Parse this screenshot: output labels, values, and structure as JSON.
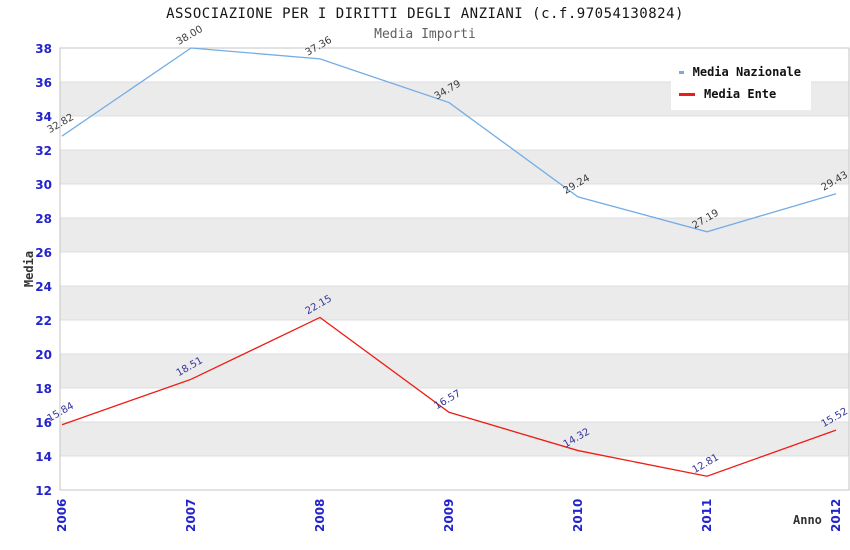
{
  "header": {
    "title": "ASSOCIAZIONE PER I DIRITTI DEGLI ANZIANI (c.f.97054130824)",
    "subtitle": "Media Importi"
  },
  "chart_data": {
    "type": "line",
    "title": "ASSOCIAZIONE PER I DIRITTI DEGLI ANZIANI (c.f.97054130824)",
    "subtitle": "Media Importi",
    "x": [
      "2006",
      "2007",
      "2008",
      "2009",
      "2010",
      "2011",
      "2012"
    ],
    "series": [
      {
        "name": "Media Nazionale",
        "color": "#74ade4",
        "label_color": "#3c3c3c",
        "values": [
          32.82,
          38.0,
          37.36,
          34.79,
          29.24,
          27.19,
          29.43
        ]
      },
      {
        "name": "Media Ente",
        "color": "#ed1c16",
        "label_color": "#333399",
        "values": [
          15.84,
          18.51,
          22.15,
          16.57,
          14.32,
          12.81,
          15.52
        ]
      }
    ],
    "xlabel": "Anno",
    "ylabel": "Media",
    "ylim": [
      12,
      38
    ],
    "ytick_step": 2,
    "legend_position": "top-right",
    "grid": "horizontal-bands",
    "band_colors": [
      "#ffffff",
      "#ebebeb"
    ],
    "tick_label_color": "#2424cc",
    "gridline_color": "#dcdcdc",
    "plot_border_color": "#c6c6c6",
    "data_label_decimals": 2
  }
}
